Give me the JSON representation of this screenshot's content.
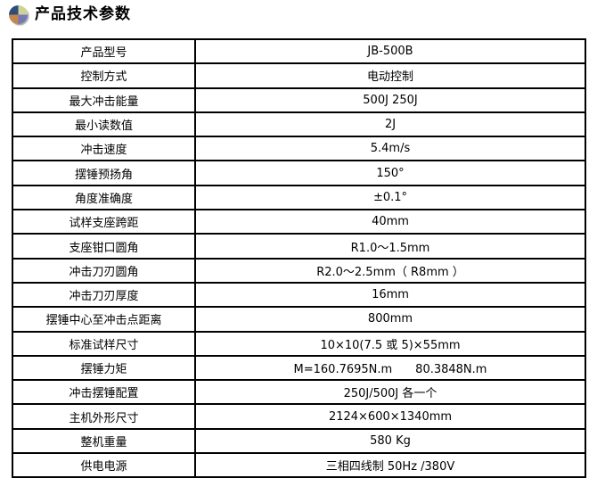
{
  "header": {
    "icon": "pie-chart-icon",
    "title": "产品技术参数"
  },
  "icon_colors": {
    "top_left": "#2e4d7b",
    "top_right": "#cfd296",
    "bottom_left": "#c5854e",
    "bottom_right": "#7478b4"
  },
  "table": {
    "border_color": "#000000",
    "rows": [
      {
        "label": "产品型号",
        "value": "JB-500B"
      },
      {
        "label": "控制方式",
        "value": "电动控制"
      },
      {
        "label": "最大冲击能量",
        "value": "500J 250J"
      },
      {
        "label": "最小读数值",
        "value": "2J"
      },
      {
        "label": "冲击速度",
        "value": "5.4m/s"
      },
      {
        "label": "摆锤预扬角",
        "value": "150°"
      },
      {
        "label": "角度准确度",
        "value": "±0.1°"
      },
      {
        "label": "试样支座跨距",
        "value": "40mm"
      },
      {
        "label": "支座钳口圆角",
        "value": "R1.0～1.5mm"
      },
      {
        "label": "冲击刀刃圆角",
        "value": "R2.0～2.5mm（ R8mm ）"
      },
      {
        "label": "冲击刀刃厚度",
        "value": "16mm"
      },
      {
        "label": "摆锤中心至冲击点距离",
        "value": "800mm"
      },
      {
        "label": "标准试样尺寸",
        "value": "10×10(7.5 或 5)×55mm"
      },
      {
        "label": "摆锤力矩",
        "value": "M=160.7695N.m　　80.3848N.m"
      },
      {
        "label": "冲击摆锤配置",
        "value": "250J/500J 各一个"
      },
      {
        "label": "主机外形尺寸",
        "value": "2124×600×1340mm"
      },
      {
        "label": "整机重量",
        "value": "580 Kg"
      },
      {
        "label": "供电电源",
        "value": "三相四线制 50Hz /380V"
      }
    ]
  }
}
